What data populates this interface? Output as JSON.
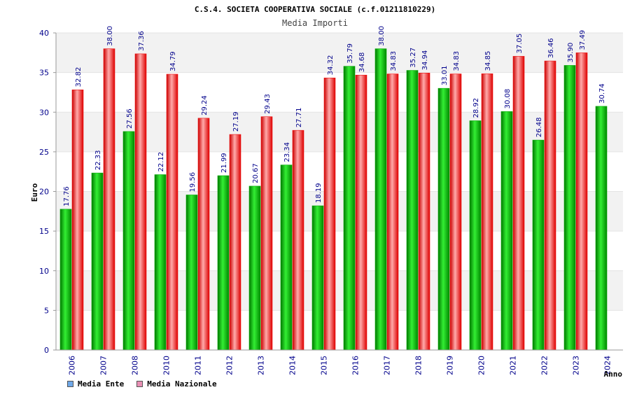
{
  "colors": {
    "ente": "#00aa00",
    "nazionale": "#ee1111",
    "legend_ente": "#6fa8e8",
    "legend_nazionale": "#e88fb4",
    "band": "#f2f2f2",
    "axis_text": "#00008b"
  },
  "chart_data": {
    "type": "bar",
    "title": "C.S.4. SOCIETA COOPERATIVA SOCIALE (c.f.01211810229)",
    "subtitle": "Media Importi",
    "ylabel": "Euro",
    "xlabel": "Anno",
    "ylim": [
      0,
      40
    ],
    "yticks": [
      "0",
      "5",
      "10",
      "15",
      "20",
      "25",
      "30",
      "35",
      "40"
    ],
    "grid": true,
    "legend_position": "bottom-left",
    "categories": [
      "2006",
      "2007",
      "2008",
      "2010",
      "2011",
      "2012",
      "2013",
      "2014",
      "2015",
      "2016",
      "2017",
      "2018",
      "2019",
      "2020",
      "2021",
      "2022",
      "2023",
      "2024"
    ],
    "series": [
      {
        "name": "Media Ente",
        "values": [
          17.76,
          22.33,
          27.56,
          22.12,
          19.56,
          21.99,
          20.67,
          23.34,
          18.19,
          35.79,
          38.0,
          35.27,
          33.01,
          28.92,
          30.08,
          26.48,
          35.9,
          30.74
        ],
        "labels": [
          "17.76",
          "22.33",
          "27.56",
          "22.12",
          "19.56",
          "21.99",
          "20.67",
          "23.34",
          "18.19",
          "35.79",
          "38.00",
          "35.27",
          "33.01",
          "28.92",
          "30.08",
          "26.48",
          "35.90",
          "30.74"
        ]
      },
      {
        "name": "Media Nazionale",
        "values": [
          32.82,
          38.0,
          37.36,
          34.79,
          29.24,
          27.19,
          29.43,
          27.71,
          34.32,
          34.68,
          34.83,
          34.94,
          34.83,
          34.85,
          37.05,
          36.46,
          37.49,
          null
        ],
        "labels": [
          "32.82",
          "38.00",
          "37.36",
          "34.79",
          "29.24",
          "27.19",
          "29.43",
          "27.71",
          "34.32",
          "34.68",
          "34.83",
          "34.94",
          "34.83",
          "34.85",
          "37.05",
          "36.46",
          "37.49",
          null
        ]
      }
    ]
  }
}
